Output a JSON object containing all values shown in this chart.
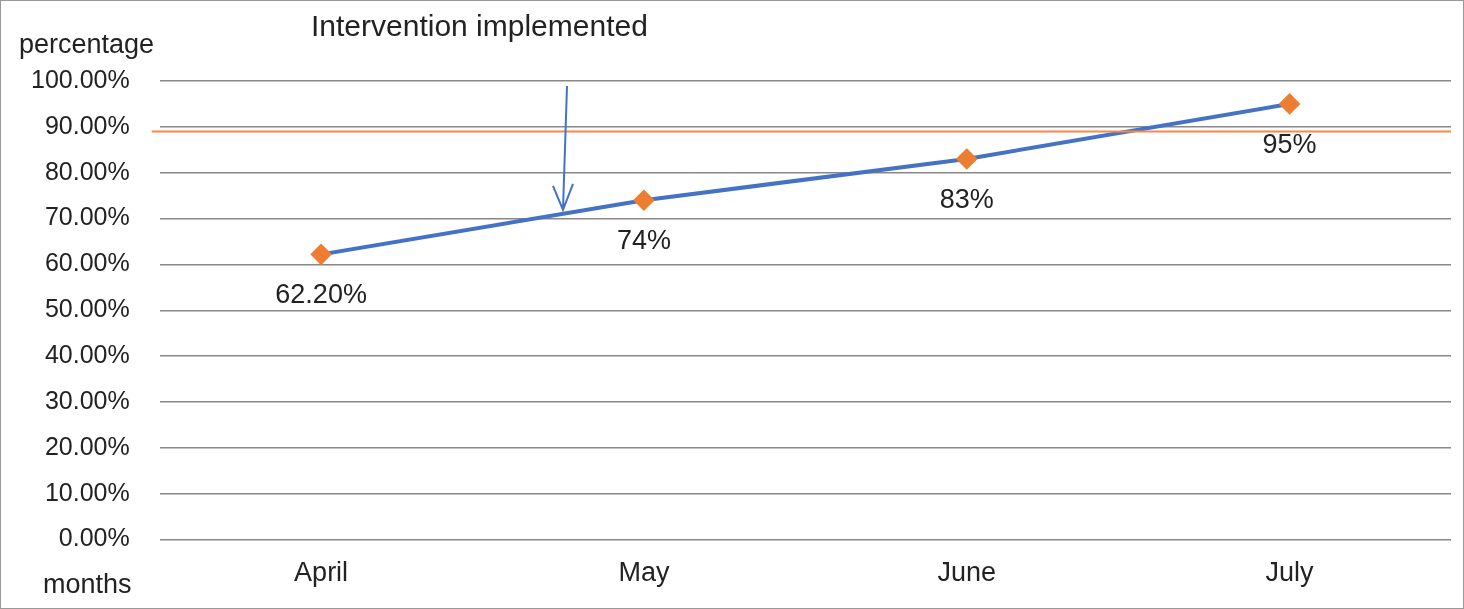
{
  "chart_data": {
    "type": "line",
    "ylabel": "percentage",
    "xlabel": "months",
    "annotations": [
      "Intervention implemented"
    ],
    "categories": [
      "April",
      "May",
      "June",
      "July"
    ],
    "series": [
      {
        "color": "#4472c4",
        "colors": [
          "#ed7d31",
          "#ed7d31",
          "#ed7d31",
          "#ed7d31"
        ],
        "values": [
          62.2,
          74,
          83,
          95
        ],
        "value_labels": [
          "62.20%",
          "74%",
          "83%",
          "95%"
        ]
      }
    ],
    "ylim": [
      0,
      100
    ],
    "yticks": [
      {
        "value": 0,
        "label": "0.00%"
      },
      {
        "value": 10,
        "label": "10.00%"
      },
      {
        "value": 20,
        "label": "20.00%"
      },
      {
        "value": 30,
        "label": "30.00%"
      },
      {
        "value": 40,
        "label": "40.00%"
      },
      {
        "value": 50,
        "label": "50.00%"
      },
      {
        "value": 60,
        "label": "60.00%"
      },
      {
        "value": 70,
        "label": "70.00%"
      },
      {
        "value": 80,
        "label": "80.00%"
      },
      {
        "value": 90,
        "label": "90.00%"
      },
      {
        "value": 100,
        "label": "100.00%"
      }
    ],
    "ref_lines": [
      {
        "axis": "y",
        "value": 89,
        "color": "#f4894b"
      }
    ],
    "grid": "y",
    "legend": false,
    "marker": "diamond",
    "line_style": "solid"
  }
}
